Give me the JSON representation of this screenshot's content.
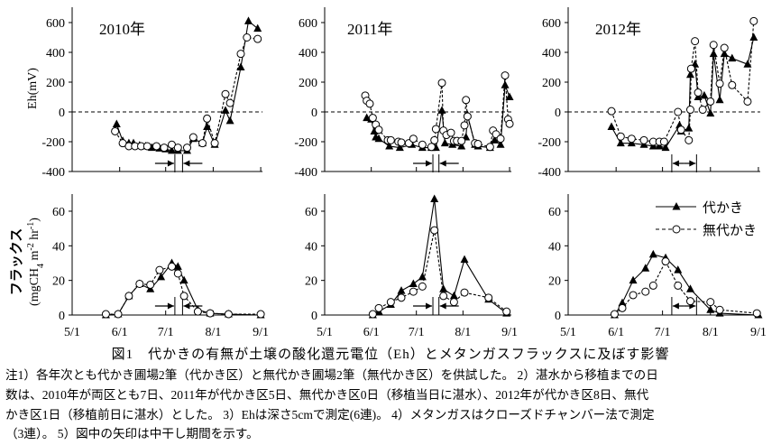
{
  "figure": {
    "caption_title": "図1　代かきの有無が土壌の酸化還元電位（Eh）とメタンガスフラックスに及ぼす影響",
    "notes": [
      "注1）各年次とも代かき圃場2筆（代かき区）と無代かき圃場2筆（無代かき区）を供試した。 2）湛水から移植までの日",
      "数は、2010年が両区とも7日、2011年が代かき区5日、無代かき区0日（移植当日に湛水）、2012年が代かき区8日、無代",
      "かき区1日（移植前日に湛水）とした。 3）Ehは深さ5cmで測定(6連)。 4）メタンガスはクローズドチャンバー法で測定",
      "（3連）。 5）図中の矢印は中干し期間を示す。"
    ]
  },
  "chart_data": {
    "type": "line",
    "x_unit": "days since 5/1",
    "x_ticks": [
      {
        "day": 0,
        "label": "5/1"
      },
      {
        "day": 31,
        "label": "6/1"
      },
      {
        "day": 61,
        "label": "7/1"
      },
      {
        "day": 92,
        "label": "8/1"
      },
      {
        "day": 123,
        "label": "9/1"
      }
    ],
    "legend": {
      "position": "top-right of 2012 flux panel",
      "entries": [
        {
          "name": "代かき",
          "marker": "filled-triangle",
          "line": "solid"
        },
        {
          "name": "無代かき",
          "marker": "open-circle",
          "line": "dashed"
        }
      ]
    },
    "eh": {
      "ylabel": "Eh(mV)",
      "ylim": [
        -400,
        700
      ],
      "yticks": [
        -400,
        -200,
        0,
        200,
        400,
        600
      ],
      "zero_line": "dashed"
    },
    "flux": {
      "ylabel_line1": "フラックス",
      "ylabel_line2": "(mgCH4 m-2 hr-1)",
      "ylabel_pre": "(mgCH",
      "ylabel_sub": "4",
      "ylabel_mid": " m",
      "ylabel_sup1": "-2",
      "ylabel_mid2": " hr",
      "ylabel_sup2": "-1",
      "ylabel_post": ")",
      "ylim": [
        0,
        70
      ],
      "yticks": [
        0,
        20,
        40,
        60
      ]
    },
    "panels": [
      {
        "year_label": "2010年",
        "drying_period": {
          "start": 67,
          "end": 72,
          "style": "converging"
        },
        "eh_plowed": [
          [
            29,
            -82
          ],
          [
            33,
            -195
          ],
          [
            37,
            -210
          ],
          [
            40,
            -210
          ],
          [
            44,
            -225
          ],
          [
            48,
            -230
          ],
          [
            52,
            -240
          ],
          [
            57,
            -245
          ],
          [
            61,
            -250
          ],
          [
            65,
            -260
          ],
          [
            69,
            -260
          ],
          [
            75,
            -260
          ],
          [
            79,
            -180
          ],
          [
            85,
            -210
          ],
          [
            88,
            -100
          ],
          [
            93,
            -220
          ],
          [
            100,
            10
          ],
          [
            103,
            -60
          ],
          [
            110,
            300
          ],
          [
            115,
            610
          ],
          [
            121,
            560
          ]
        ],
        "eh_unplowed": [
          [
            28,
            -130
          ],
          [
            33,
            -210
          ],
          [
            37,
            -230
          ],
          [
            41,
            -230
          ],
          [
            45,
            -230
          ],
          [
            49,
            -230
          ],
          [
            55,
            -230
          ],
          [
            60,
            -240
          ],
          [
            65,
            -220
          ],
          [
            69,
            -240
          ],
          [
            75,
            -240
          ],
          [
            79,
            -170
          ],
          [
            85,
            -210
          ],
          [
            88,
            -45
          ],
          [
            93,
            -210
          ],
          [
            100,
            120
          ],
          [
            103,
            60
          ],
          [
            110,
            390
          ],
          [
            114,
            500
          ],
          [
            121,
            490
          ]
        ],
        "flux_plowed": [
          [
            22,
            0
          ],
          [
            30,
            0.5
          ],
          [
            37,
            11
          ],
          [
            44,
            18
          ],
          [
            51,
            15
          ],
          [
            58,
            22
          ],
          [
            65,
            30
          ],
          [
            69,
            28
          ],
          [
            73,
            20
          ],
          [
            82,
            3
          ],
          [
            90,
            1
          ],
          [
            102,
            0.5
          ],
          [
            123,
            0
          ]
        ],
        "flux_unplowed": [
          [
            22,
            0.5
          ],
          [
            30,
            0.5
          ],
          [
            37,
            11
          ],
          [
            44,
            18
          ],
          [
            51,
            17.5
          ],
          [
            57,
            26
          ],
          [
            65,
            28
          ],
          [
            69,
            24
          ],
          [
            73,
            11
          ],
          [
            82,
            2
          ],
          [
            90,
            1
          ],
          [
            102,
            0.5
          ],
          [
            123,
            0.5
          ]
        ]
      },
      {
        "year_label": "2011年",
        "drying_period": {
          "start": 72,
          "end": 76,
          "style": "converging"
        },
        "eh_plowed": [
          [
            28,
            -40
          ],
          [
            31,
            -50
          ],
          [
            33,
            -130
          ],
          [
            34,
            -170
          ],
          [
            36,
            -180
          ],
          [
            43,
            -230
          ],
          [
            50,
            -240
          ],
          [
            58,
            -220
          ],
          [
            65,
            -240
          ],
          [
            71,
            -240
          ],
          [
            74,
            -240
          ],
          [
            78,
            10
          ],
          [
            80,
            -210
          ],
          [
            85,
            -220
          ],
          [
            91,
            -230
          ],
          [
            94,
            -170
          ],
          [
            95,
            -20
          ],
          [
            100,
            -220
          ],
          [
            102,
            -230
          ],
          [
            110,
            -240
          ],
          [
            113,
            -190
          ],
          [
            117,
            -220
          ],
          [
            120,
            180
          ],
          [
            123,
            100
          ]
        ],
        "eh_unplowed": [
          [
            27,
            110
          ],
          [
            28,
            75
          ],
          [
            30,
            55
          ],
          [
            32,
            -40
          ],
          [
            34,
            -85
          ],
          [
            36,
            -120
          ],
          [
            42,
            -190
          ],
          [
            44,
            -190
          ],
          [
            49,
            -200
          ],
          [
            51,
            -205
          ],
          [
            56,
            -210
          ],
          [
            59,
            -180
          ],
          [
            65,
            -220
          ],
          [
            71,
            -235
          ],
          [
            73,
            -190
          ],
          [
            74,
            -115
          ],
          [
            78,
            195
          ],
          [
            79,
            -125
          ],
          [
            81,
            -155
          ],
          [
            84,
            -140
          ],
          [
            86,
            -195
          ],
          [
            88,
            -195
          ],
          [
            91,
            -195
          ],
          [
            93,
            -90
          ],
          [
            94,
            80
          ],
          [
            95,
            -30
          ],
          [
            100,
            -210
          ],
          [
            102,
            -215
          ],
          [
            110,
            -235
          ],
          [
            112,
            -125
          ],
          [
            114,
            -150
          ],
          [
            117,
            -180
          ],
          [
            120,
            245
          ],
          [
            122,
            -50
          ],
          [
            123,
            -80
          ]
        ],
        "flux_plowed": [
          [
            32,
            0
          ],
          [
            36,
            2
          ],
          [
            44,
            6
          ],
          [
            51,
            14
          ],
          [
            59,
            18
          ],
          [
            65,
            22
          ],
          [
            73,
            67
          ],
          [
            79,
            15
          ],
          [
            86,
            11
          ],
          [
            93,
            32
          ],
          [
            109,
            9
          ],
          [
            121,
            1
          ]
        ],
        "flux_unplowed": [
          [
            32,
            0.5
          ],
          [
            36,
            4
          ],
          [
            44,
            7.5
          ],
          [
            51,
            10
          ],
          [
            59,
            13.5
          ],
          [
            65,
            16.5
          ],
          [
            73,
            49
          ],
          [
            79,
            11
          ],
          [
            86,
            7.5
          ],
          [
            93,
            13
          ],
          [
            109,
            10
          ],
          [
            121,
            2
          ]
        ]
      },
      {
        "year_label": "2012年",
        "drying_period": {
          "start": 67,
          "end": 83,
          "style": "double-headed"
        },
        "eh_plowed": [
          [
            28,
            -100
          ],
          [
            34,
            -210
          ],
          [
            41,
            -210
          ],
          [
            49,
            -220
          ],
          [
            55,
            -230
          ],
          [
            59,
            -230
          ],
          [
            63,
            -240
          ],
          [
            72,
            -90
          ],
          [
            73,
            -130
          ],
          [
            78,
            -110
          ],
          [
            79,
            250
          ],
          [
            82,
            320
          ],
          [
            84,
            100
          ],
          [
            88,
            110
          ],
          [
            92,
            -10
          ],
          [
            94,
            390
          ],
          [
            98,
            80
          ],
          [
            101,
            390
          ],
          [
            106,
            360
          ],
          [
            116,
            320
          ],
          [
            120,
            500
          ]
        ],
        "eh_unplowed": [
          [
            28,
            5
          ],
          [
            34,
            -165
          ],
          [
            41,
            -180
          ],
          [
            49,
            -190
          ],
          [
            55,
            -200
          ],
          [
            59,
            -200
          ],
          [
            62,
            -200
          ],
          [
            71,
            0
          ],
          [
            73,
            -120
          ],
          [
            78,
            -190
          ],
          [
            79,
            15
          ],
          [
            79.5,
            290
          ],
          [
            82,
            475
          ],
          [
            84,
            130
          ],
          [
            87,
            15
          ],
          [
            92,
            70
          ],
          [
            94,
            450
          ],
          [
            98,
            190
          ],
          [
            101,
            430
          ],
          [
            106,
            180
          ],
          [
            116,
            70
          ],
          [
            120,
            610
          ]
        ],
        "flux_plowed": [
          [
            30,
            0
          ],
          [
            35,
            7
          ],
          [
            42,
            20
          ],
          [
            50,
            27
          ],
          [
            55,
            35
          ],
          [
            63,
            33
          ],
          [
            71,
            26
          ],
          [
            79,
            15
          ],
          [
            92,
            3
          ],
          [
            98,
            1
          ],
          [
            123,
            0
          ]
        ],
        "flux_unplowed": [
          [
            30,
            0.5
          ],
          [
            35,
            4
          ],
          [
            42,
            11.5
          ],
          [
            50,
            13.5
          ],
          [
            55,
            17
          ],
          [
            63,
            31
          ],
          [
            71,
            17
          ],
          [
            79,
            8
          ],
          [
            92,
            7.5
          ],
          [
            98,
            3
          ],
          [
            122,
            1
          ]
        ]
      }
    ]
  }
}
